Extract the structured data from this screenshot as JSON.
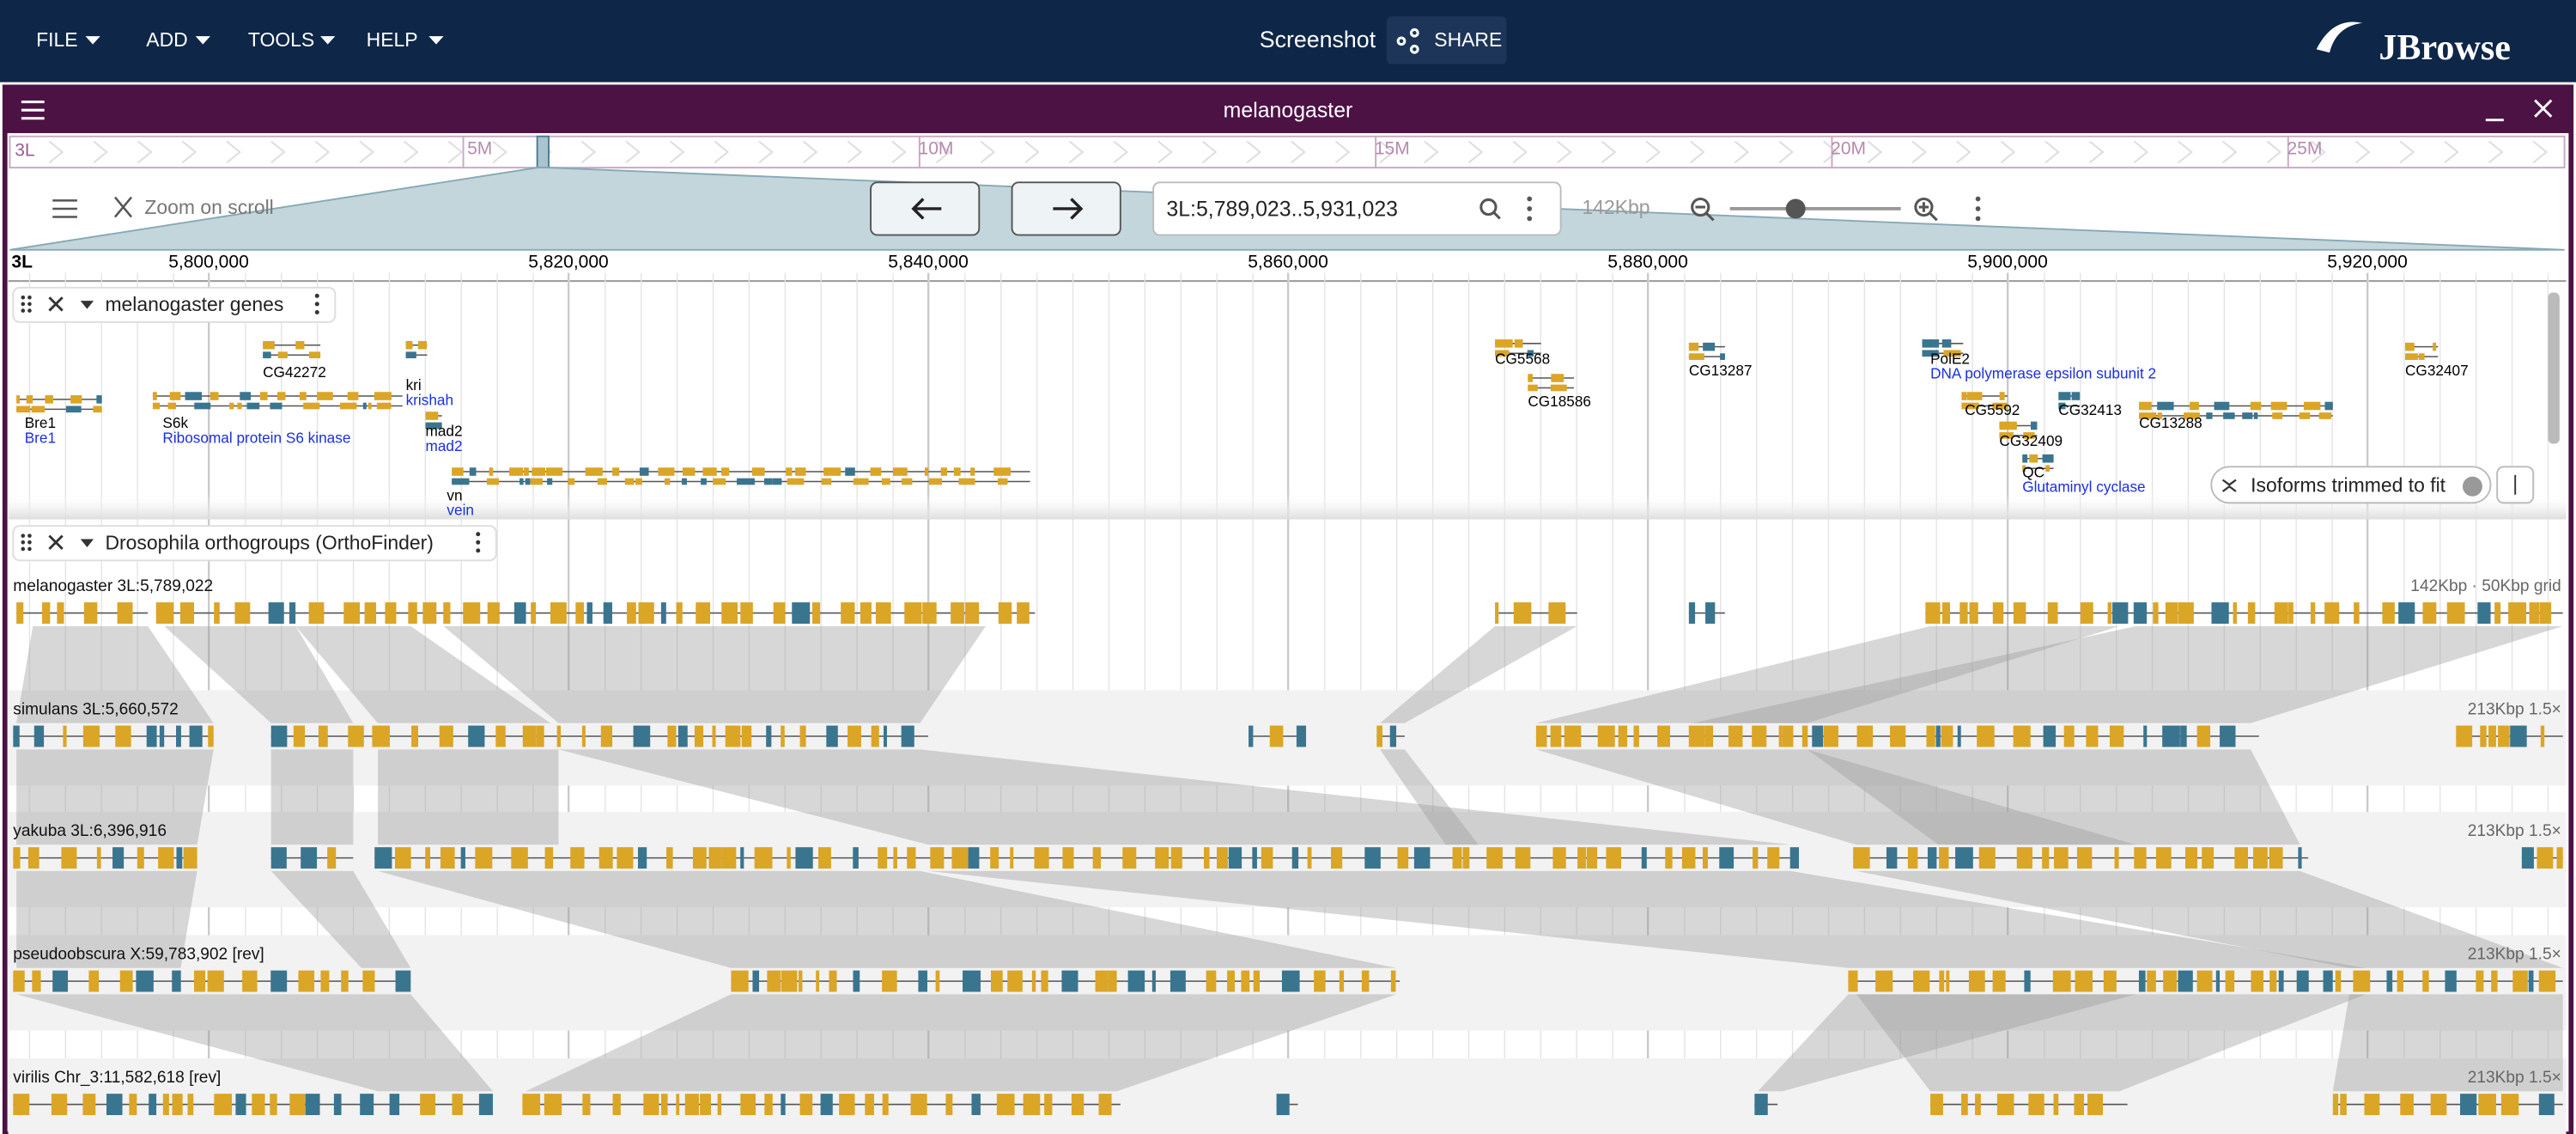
{
  "menu": [
    "FILE",
    "ADD",
    "TOOLS",
    "HELP"
  ],
  "header": {
    "session": "Screenshot",
    "share": "SHARE",
    "logo": "JBrowse"
  },
  "view": {
    "title": "melanogaster",
    "overview": {
      "refname": "3L",
      "ticks": [
        "5M",
        "10M",
        "15M",
        "20M",
        "25M"
      ]
    },
    "toolbar": {
      "zoom_on_scroll": "Zoom on scroll",
      "locstring": "3L:5,789,023..5,931,023",
      "span": "142Kbp"
    },
    "ruler": {
      "refname": "3L",
      "ticks": [
        "5,800,000",
        "5,820,000",
        "5,840,000",
        "5,860,000",
        "5,880,000",
        "5,900,000",
        "5,920,000"
      ]
    }
  },
  "tracks": [
    {
      "name": "melanogaster genes",
      "notice": "Isoforms trimmed to fit",
      "features": [
        {
          "name": "Bre1",
          "description": "Bre1"
        },
        {
          "name": "CG42272"
        },
        {
          "name": "S6k",
          "description": "Ribosomal protein S6 kinase"
        },
        {
          "name": "kri",
          "description": "krishah"
        },
        {
          "name": "mad2",
          "description": "mad2"
        },
        {
          "name": "vn",
          "description": "vein"
        },
        {
          "name": "CG5568"
        },
        {
          "name": "CG18586"
        },
        {
          "name": "CG13287"
        },
        {
          "name": "PolE2",
          "description": "DNA polymerase epsilon subunit 2"
        },
        {
          "name": "CG5592"
        },
        {
          "name": "CG32413"
        },
        {
          "name": "CG13288"
        },
        {
          "name": "CG32409"
        },
        {
          "name": "QC",
          "description": "Glutaminyl cyclase"
        },
        {
          "name": "CG32407"
        }
      ]
    },
    {
      "name": "Drosophila orthogroups (OrthoFinder)",
      "rows": [
        {
          "label": "melanogaster 3L:5,789,022",
          "info": "142Kbp · 50Kbp grid"
        },
        {
          "label": "simulans 3L:5,660,572",
          "info": "213Kbp 1.5×"
        },
        {
          "label": "yakuba 3L:6,396,916",
          "info": "213Kbp 1.5×"
        },
        {
          "label": "pseudoobscura X:59,783,902 [rev]",
          "info": "213Kbp 1.5×"
        },
        {
          "label": "virilis Chr_3:11,582,618 [rev]",
          "info": "213Kbp 1.5×"
        }
      ]
    }
  ]
}
